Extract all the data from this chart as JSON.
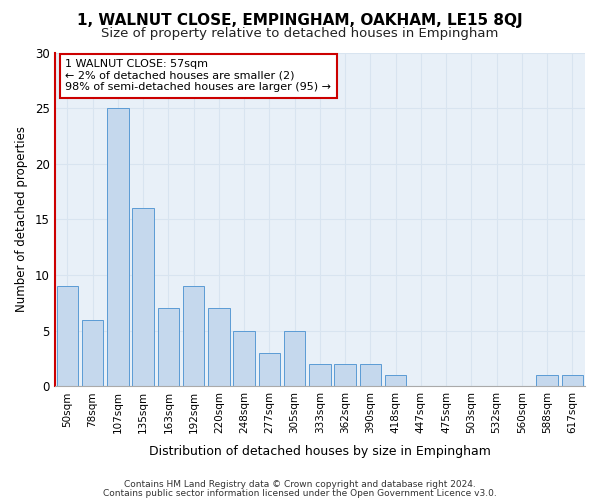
{
  "title": "1, WALNUT CLOSE, EMPINGHAM, OAKHAM, LE15 8QJ",
  "subtitle": "Size of property relative to detached houses in Empingham",
  "xlabel": "Distribution of detached houses by size in Empingham",
  "ylabel": "Number of detached properties",
  "categories": [
    "50sqm",
    "78sqm",
    "107sqm",
    "135sqm",
    "163sqm",
    "192sqm",
    "220sqm",
    "248sqm",
    "277sqm",
    "305sqm",
    "333sqm",
    "362sqm",
    "390sqm",
    "418sqm",
    "447sqm",
    "475sqm",
    "503sqm",
    "532sqm",
    "560sqm",
    "588sqm",
    "617sqm"
  ],
  "values": [
    9,
    6,
    25,
    16,
    7,
    9,
    7,
    5,
    3,
    5,
    2,
    2,
    2,
    1,
    0,
    0,
    0,
    0,
    0,
    1,
    1
  ],
  "bar_color": "#c5d8ed",
  "bar_edge_color": "#5b9bd5",
  "highlight_line_color": "#cc0000",
  "annotation_line1": "1 WALNUT CLOSE: 57sqm",
  "annotation_line2": "← 2% of detached houses are smaller (2)",
  "annotation_line3": "98% of semi-detached houses are larger (95) →",
  "annotation_box_color": "#ffffff",
  "annotation_box_edge_color": "#cc0000",
  "ylim": [
    0,
    30
  ],
  "yticks": [
    0,
    5,
    10,
    15,
    20,
    25,
    30
  ],
  "grid_color": "#d8e4f0",
  "background_color": "#e8f0f8",
  "footer_line1": "Contains HM Land Registry data © Crown copyright and database right 2024.",
  "footer_line2": "Contains public sector information licensed under the Open Government Licence v3.0."
}
